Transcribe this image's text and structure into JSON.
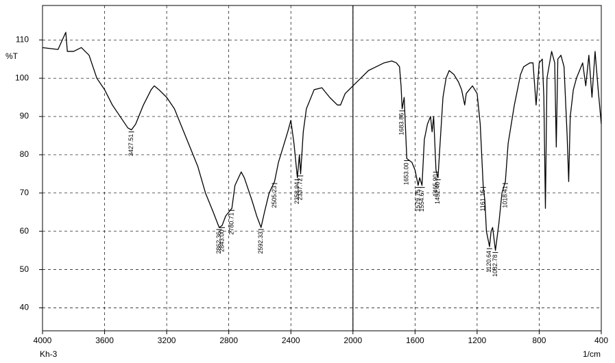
{
  "chart_data": {
    "type": "line",
    "y_label": "%T",
    "x_label": "1/cm",
    "sample": "Kh-3",
    "xlim": [
      4000,
      400
    ],
    "xticks": [
      4000,
      3600,
      3200,
      2800,
      2400,
      2000,
      1600,
      1200,
      800,
      400
    ],
    "ylim": [
      34,
      119
    ],
    "yticks": [
      40,
      50,
      60,
      70,
      80,
      90,
      100,
      110
    ],
    "grid": true,
    "vline": 2000,
    "color": "#000000",
    "x": [
      4000,
      3900,
      3850,
      3840,
      3800,
      3750,
      3700,
      3650,
      3600,
      3550,
      3500,
      3450,
      3427,
      3400,
      3350,
      3300,
      3280,
      3250,
      3200,
      3150,
      3100,
      3050,
      3000,
      2950,
      2900,
      2862,
      2843,
      2820,
      2800,
      2780,
      2760,
      2720,
      2700,
      2650,
      2620,
      2592,
      2570,
      2540,
      2505,
      2480,
      2450,
      2420,
      2400,
      2380,
      2358,
      2345,
      2337,
      2320,
      2300,
      2250,
      2200,
      2150,
      2100,
      2080,
      2050,
      2000,
      1950,
      1900,
      1850,
      1800,
      1750,
      1720,
      1700,
      1690,
      1683,
      1670,
      1653,
      1620,
      1600,
      1580,
      1570,
      1555,
      1540,
      1520,
      1500,
      1490,
      1480,
      1465,
      1452,
      1440,
      1420,
      1400,
      1380,
      1350,
      1320,
      1300,
      1280,
      1270,
      1250,
      1230,
      1200,
      1180,
      1161,
      1150,
      1140,
      1120,
      1110,
      1100,
      1082,
      1060,
      1040,
      1018,
      1000,
      980,
      960,
      940,
      920,
      900,
      860,
      840,
      820,
      800,
      780,
      770,
      760,
      750,
      720,
      700,
      690,
      680,
      660,
      640,
      620,
      610,
      600,
      580,
      560,
      540,
      520,
      500,
      480,
      460,
      440,
      420,
      400
    ],
    "values": [
      108,
      107.5,
      112,
      107,
      107,
      108,
      106,
      100,
      97,
      93,
      90,
      87,
      86.5,
      88,
      93,
      97,
      98,
      97,
      95,
      92,
      87,
      82,
      77,
      70,
      65,
      61,
      61.5,
      64,
      65,
      66,
      72,
      75.5,
      74,
      68,
      64,
      61,
      65,
      70,
      73,
      78,
      82,
      86,
      89,
      83,
      74,
      80,
      75,
      86,
      92,
      97,
      97.5,
      95,
      93,
      93,
      96,
      98,
      100,
      102,
      103,
      104,
      104.5,
      104,
      103,
      98,
      92,
      95,
      79,
      78,
      76,
      72,
      74,
      72,
      84,
      88,
      90,
      86,
      90,
      76,
      74,
      82,
      95,
      100,
      102,
      101,
      99,
      97,
      93,
      96,
      97,
      98,
      96,
      88,
      72,
      68,
      60,
      56,
      60,
      61,
      55,
      62,
      70,
      73,
      83,
      88,
      93,
      97,
      101,
      103,
      104,
      104,
      93,
      104,
      105,
      95,
      66,
      100,
      107,
      104,
      82,
      105,
      106,
      103,
      85,
      73,
      90,
      97,
      100,
      102,
      104,
      98,
      106,
      95,
      107,
      97,
      88
    ],
    "peaks": [
      {
        "value": 3427.51,
        "label": "3427.51",
        "y": 86.5
      },
      {
        "value": 2862.36,
        "label": "2862.36",
        "y": 61
      },
      {
        "value": 2843.0,
        "label": "2843.00",
        "y": 61.5
      },
      {
        "value": 2780.71,
        "label": "2780.71",
        "y": 66
      },
      {
        "value": 2592.33,
        "label": "2592.33",
        "y": 61
      },
      {
        "value": 2505.23,
        "label": "2505.23",
        "y": 73
      },
      {
        "value": 2358.94,
        "label": "2358.94",
        "y": 74
      },
      {
        "value": 2337.72,
        "label": "2337.72",
        "y": 75
      },
      {
        "value": 1683.86,
        "label": "1683.86",
        "y": 92
      },
      {
        "value": 1653.0,
        "label": "1653.00",
        "y": 79
      },
      {
        "value": 1579.75,
        "label": "1579.75",
        "y": 72
      },
      {
        "value": 1554.67,
        "label": "1554.67",
        "y": 72
      },
      {
        "value": 1465.9,
        "label": "1465.90",
        "y": 76
      },
      {
        "value": 1452.4,
        "label": "1452.40",
        "y": 74
      },
      {
        "value": 1161.15,
        "label": "1161.15",
        "y": 72
      },
      {
        "value": 1120.64,
        "label": "1120.64",
        "y": 56
      },
      {
        "value": 1082.78,
        "label": "1082.78",
        "y": 55
      },
      {
        "value": 1018.41,
        "label": "1018.41",
        "y": 73
      }
    ]
  }
}
